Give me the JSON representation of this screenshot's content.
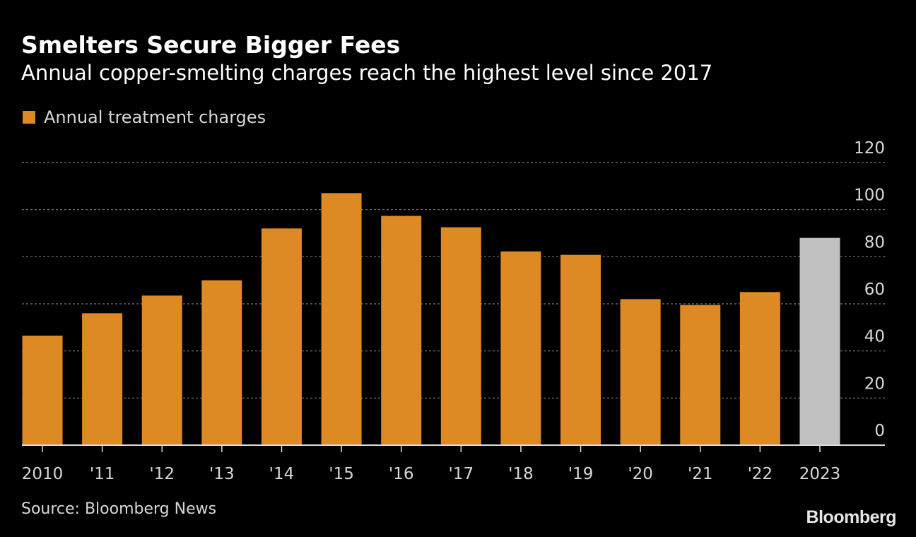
{
  "chart_data": {
    "type": "bar",
    "title": "Smelters Secure Bigger Fees",
    "subtitle": "Annual copper-smelting charges reach the highest level since 2017",
    "categories": [
      "2010",
      "'11",
      "'12",
      "'13",
      "'14",
      "'15",
      "'16",
      "'17",
      "'18",
      "'19",
      "'20",
      "'21",
      "'22",
      "2023"
    ],
    "series": [
      {
        "name": "Annual treatment charges",
        "values": [
          46.5,
          56,
          63.5,
          70,
          92,
          107,
          97.35,
          92.5,
          82.25,
          80.8,
          62,
          59.5,
          65,
          88
        ]
      }
    ],
    "highlight_last_color": "#c0c0c0",
    "ylim": [
      0,
      120
    ],
    "yticks": [
      0,
      20,
      40,
      60,
      80,
      100,
      120
    ],
    "y_axis_side": "right",
    "grid": true,
    "legend_placement": "top-left",
    "xlabel": "",
    "ylabel": ""
  },
  "colors": {
    "bar": "#dd8a24",
    "projected": "#c0c0c0",
    "background": "#000000"
  },
  "source": "Source: Bloomberg News",
  "logo": "Bloomberg"
}
